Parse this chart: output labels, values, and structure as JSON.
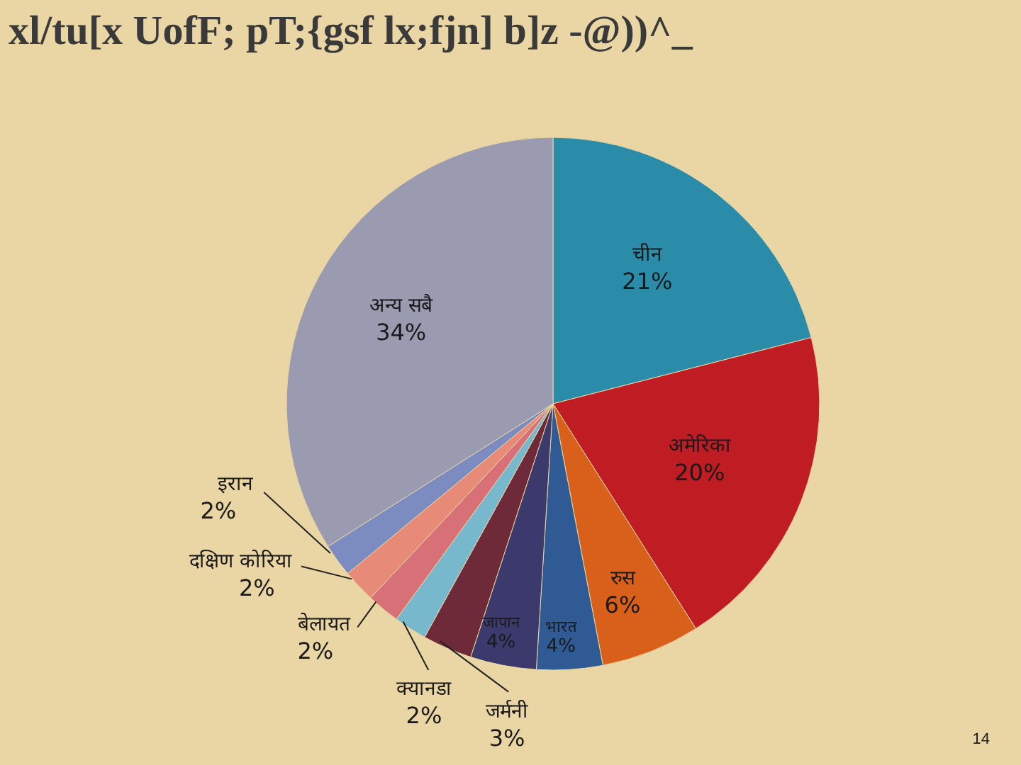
{
  "chart_data": {
    "type": "pie",
    "title": "xl/tu[x UofF; pT;{gsf lx;fjn] b]z -@))^_",
    "categories": [
      "चीन",
      "अमेरिका",
      "रुस",
      "भारत",
      "जापान",
      "जर्मनी",
      "क्यानडा",
      "बेलायत",
      "दक्षिण कोरिया",
      "इरान",
      "अन्य सबै"
    ],
    "values": [
      21,
      20,
      6,
      4,
      4,
      3,
      2,
      2,
      2,
      2,
      34
    ],
    "colors": [
      "#2a8ca8",
      "#c01c24",
      "#d8601a",
      "#305a94",
      "#3c3a6c",
      "#6e2a38",
      "#78b8cc",
      "#d87078",
      "#e88a78",
      "#7c8cc0",
      "#9a9ab0"
    ],
    "value_labels": [
      "21%",
      "20%",
      "6%",
      "4%",
      "4%",
      "3%",
      "2%",
      "2%",
      "2%",
      "2%",
      "34%"
    ],
    "annotations": [
      "14"
    ]
  }
}
